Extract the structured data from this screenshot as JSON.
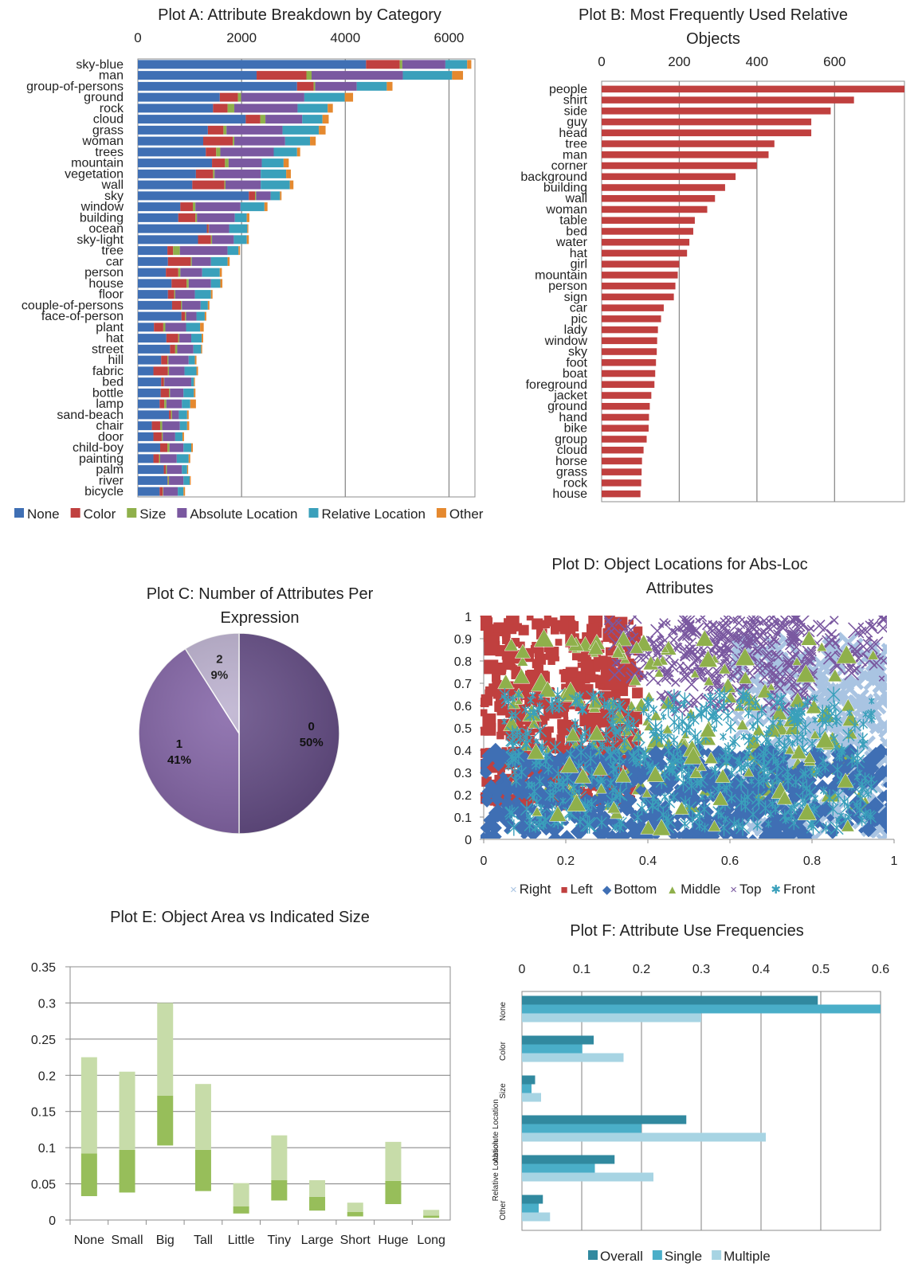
{
  "chart_data": [
    {
      "id": "A",
      "type": "bar",
      "orientation": "horizontal",
      "stacked": true,
      "title": "Plot A: Attribute Breakdown by Category",
      "xlim": [
        0,
        6500
      ],
      "xticks": [
        0,
        2000,
        4000,
        6000
      ],
      "grid": true,
      "legend_position": "bottom",
      "categories": [
        "sky-blue",
        "man",
        "group-of-persons",
        "ground",
        "rock",
        "cloud",
        "grass",
        "woman",
        "trees",
        "mountain",
        "vegetation",
        "wall",
        "sky",
        "window",
        "building",
        "ocean",
        "sky-light",
        "tree",
        "car",
        "person",
        "house",
        "floor",
        "couple-of-persons",
        "face-of-person",
        "plant",
        "hat",
        "street",
        "hill",
        "fabric",
        "bed",
        "bottle",
        "lamp",
        "sand-beach",
        "chair",
        "door",
        "child-boy",
        "painting",
        "palm",
        "river",
        "bicycle"
      ],
      "series": [
        {
          "name": "None",
          "color": "#3f6fb4",
          "values": [
            4400,
            2290,
            3070,
            1580,
            1450,
            2080,
            1350,
            1260,
            1310,
            1430,
            1120,
            1050,
            2140,
            820,
            780,
            1330,
            1160,
            570,
            580,
            540,
            650,
            580,
            660,
            840,
            310,
            550,
            620,
            450,
            300,
            450,
            440,
            420,
            600,
            270,
            300,
            430,
            300,
            500,
            570,
            420
          ]
        },
        {
          "name": "Color",
          "color": "#c0403f",
          "values": [
            650,
            960,
            320,
            350,
            280,
            280,
            300,
            570,
            200,
            250,
            330,
            620,
            120,
            240,
            330,
            30,
            250,
            110,
            440,
            240,
            290,
            120,
            170,
            70,
            180,
            230,
            100,
            120,
            280,
            50,
            160,
            90,
            40,
            160,
            160,
            140,
            110,
            40,
            10,
            60
          ]
        },
        {
          "name": "Size",
          "color": "#8fb04b",
          "values": [
            50,
            100,
            30,
            60,
            130,
            100,
            60,
            30,
            80,
            70,
            30,
            20,
            20,
            50,
            30,
            10,
            20,
            130,
            20,
            40,
            40,
            20,
            20,
            20,
            40,
            20,
            40,
            20,
            20,
            10,
            20,
            40,
            20,
            40,
            20,
            40,
            20,
            20,
            20,
            10
          ]
        },
        {
          "name": "Absolute Location",
          "color": "#7a58a0",
          "values": [
            830,
            1760,
            800,
            1220,
            1220,
            710,
            1080,
            980,
            1030,
            640,
            890,
            680,
            280,
            870,
            730,
            390,
            420,
            920,
            370,
            420,
            430,
            380,
            360,
            200,
            400,
            230,
            310,
            390,
            300,
            520,
            260,
            300,
            130,
            340,
            240,
            270,
            320,
            290,
            280,
            280
          ]
        },
        {
          "name": "Relative Location",
          "color": "#3aa0bb",
          "values": [
            420,
            950,
            580,
            780,
            580,
            390,
            700,
            480,
            450,
            420,
            490,
            560,
            180,
            460,
            230,
            350,
            250,
            210,
            320,
            340,
            180,
            310,
            140,
            160,
            270,
            200,
            150,
            120,
            230,
            50,
            200,
            160,
            160,
            140,
            140,
            150,
            230,
            100,
            120,
            110
          ]
        },
        {
          "name": "Other",
          "color": "#e5892f",
          "values": [
            80,
            210,
            110,
            160,
            100,
            120,
            130,
            110,
            60,
            100,
            90,
            70,
            30,
            60,
            50,
            20,
            40,
            30,
            40,
            40,
            40,
            30,
            30,
            30,
            70,
            30,
            20,
            30,
            30,
            20,
            30,
            110,
            30,
            40,
            30,
            30,
            30,
            20,
            20,
            30
          ]
        }
      ]
    },
    {
      "id": "B",
      "type": "bar",
      "orientation": "horizontal",
      "title": "Plot B: Most Frequently Used Relative Objects",
      "xlim": [
        0,
        780
      ],
      "xticks": [
        0,
        200,
        400,
        600
      ],
      "grid": true,
      "color": "#c0403f",
      "categories": [
        "people",
        "shirt",
        "side",
        "guy",
        "head",
        "tree",
        "man",
        "corner",
        "background",
        "building",
        "wall",
        "woman",
        "table",
        "bed",
        "water",
        "hat",
        "girl",
        "mountain",
        "person",
        "sign",
        "car",
        "pic",
        "lady",
        "window",
        "sky",
        "foot",
        "boat",
        "foreground",
        "jacket",
        "ground",
        "hand",
        "bike",
        "group",
        "cloud",
        "horse",
        "grass",
        "rock",
        "house"
      ],
      "values": [
        780,
        650,
        590,
        540,
        540,
        445,
        430,
        400,
        345,
        318,
        292,
        272,
        240,
        236,
        226,
        220,
        200,
        196,
        190,
        186,
        160,
        153,
        145,
        143,
        142,
        140,
        138,
        136,
        128,
        124,
        122,
        121,
        116,
        108,
        104,
        103,
        102,
        100
      ]
    },
    {
      "id": "C",
      "type": "pie",
      "title": "Plot C: Number of Attributes Per Expression",
      "labels": [
        "0",
        "1",
        "2"
      ],
      "values": [
        50,
        41,
        9
      ],
      "value_labels": [
        "50%",
        "41%",
        "9%"
      ],
      "colors": [
        "#654d86",
        "#8566a8",
        "#bdb2d0"
      ]
    },
    {
      "id": "D",
      "type": "scatter",
      "title": "Plot D: Object Locations for Abs-Loc Attributes",
      "xlim": [
        0,
        1
      ],
      "ylim": [
        0,
        1
      ],
      "xticks": [
        "0",
        "0.2",
        "0.4",
        "0.6",
        "0.8",
        "1"
      ],
      "yticks": [
        "0",
        "0.1",
        "0.2",
        "0.3",
        "0.4",
        "0.5",
        "0.6",
        "0.7",
        "0.8",
        "0.9",
        "1"
      ],
      "legend_position": "bottom",
      "series": [
        {
          "name": "Right",
          "marker": "×",
          "color": "#a9c4e2"
        },
        {
          "name": "Left",
          "marker": "■",
          "color": "#c0403f"
        },
        {
          "name": "Bottom",
          "marker": "◆",
          "color": "#3f6fb4"
        },
        {
          "name": "Middle",
          "marker": "▲",
          "color": "#8fb04b"
        },
        {
          "name": "Top",
          "marker": "×",
          "color": "#7a58a0"
        },
        {
          "name": "Front",
          "marker": "✱",
          "color": "#3aa0bb"
        }
      ]
    },
    {
      "id": "E",
      "type": "bar",
      "title": "Plot E: Object Area vs Indicated Size",
      "ylim": [
        0,
        0.35
      ],
      "yticks": [
        "0",
        "0.05",
        "0.1",
        "0.15",
        "0.2",
        "0.25",
        "0.3",
        "0.35"
      ],
      "grid": true,
      "categories": [
        "None",
        "Small",
        "Big",
        "Tall",
        "Little",
        "Tiny",
        "Large",
        "Short",
        "Huge",
        "Long"
      ],
      "lower": [
        0.033,
        0.038,
        0.103,
        0.04,
        0.009,
        0.027,
        0.013,
        0.005,
        0.022,
        0.003
      ],
      "middle": [
        0.092,
        0.097,
        0.172,
        0.097,
        0.019,
        0.055,
        0.032,
        0.011,
        0.054,
        0.006
      ],
      "upper": [
        0.225,
        0.205,
        0.3,
        0.188,
        0.051,
        0.117,
        0.055,
        0.024,
        0.108,
        0.014
      ],
      "colors": {
        "dark": "#97be5a",
        "light": "#c7dca9"
      }
    },
    {
      "id": "F",
      "type": "bar",
      "orientation": "horizontal",
      "title": "Plot F: Attribute Use Frequencies",
      "xlim": [
        0,
        0.6
      ],
      "xticks": [
        "0",
        "0.1",
        "0.2",
        "0.3",
        "0.4",
        "0.5",
        "0.6"
      ],
      "grid": true,
      "legend_position": "bottom",
      "categories": [
        [
          "None"
        ],
        [
          "Color"
        ],
        [
          "Size"
        ],
        [
          "Absolute",
          "Location"
        ],
        [
          "Relative",
          "Location"
        ],
        [
          "Other"
        ]
      ],
      "series": [
        {
          "name": "Overall",
          "color": "#31899f",
          "values": [
            0.495,
            0.12,
            0.022,
            0.275,
            0.155,
            0.035
          ]
        },
        {
          "name": "Single",
          "color": "#4aaec8",
          "values": [
            0.6,
            0.101,
            0.016,
            0.2,
            0.122,
            0.028
          ]
        },
        {
          "name": "Multiple",
          "color": "#a7d4e3",
          "values": [
            0.3,
            0.17,
            0.032,
            0.408,
            0.22,
            0.047
          ]
        }
      ]
    }
  ]
}
